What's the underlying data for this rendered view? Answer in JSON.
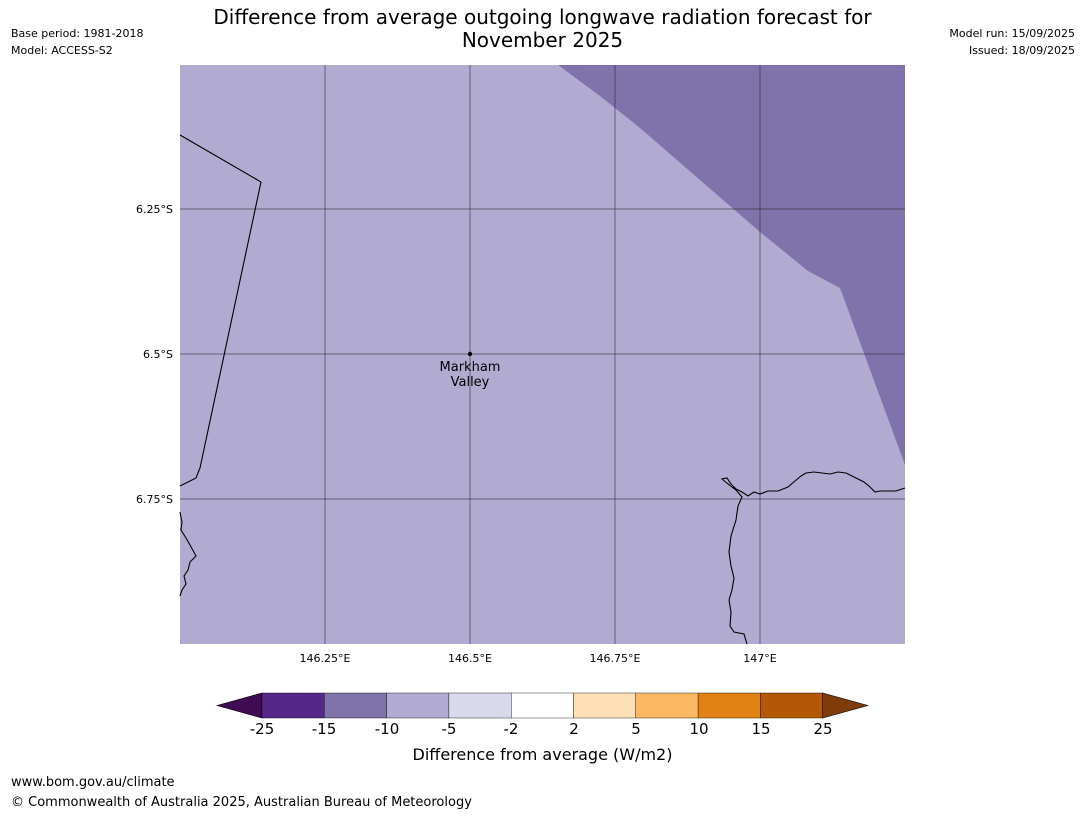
{
  "header": {
    "base_period": "Base period: 1981-2018",
    "model": "Model: ACCESS-S2",
    "title_line1": "Difference from average outgoing longwave radiation forecast for",
    "title_line2": "November 2025",
    "model_run": "Model run: 15/09/2025",
    "issued": "Issued: 18/09/2025"
  },
  "map": {
    "lat_ticks": [
      "6.25°S",
      "6.5°S",
      "6.75°S"
    ],
    "lon_ticks": [
      "146.25°E",
      "146.5°E",
      "146.75°E",
      "147°E"
    ],
    "location": {
      "name_line1": "Markham",
      "name_line2": "Valley"
    },
    "colors": {
      "band_neg10_neg5": "#b1abd2",
      "band_neg15_neg10": "#8073ac"
    }
  },
  "colorbar": {
    "label": "Difference from average (W/m2)",
    "ticks": [
      "-25",
      "-15",
      "-10",
      "-5",
      "-2",
      "2",
      "5",
      "10",
      "15",
      "25"
    ],
    "colors": [
      "#3f0b53",
      "#542788",
      "#8073ac",
      "#b1abd2",
      "#d8daeb",
      "#ffffff",
      "#fee0b6",
      "#fdb863",
      "#e08214",
      "#b35806",
      "#7f3b08"
    ]
  },
  "footer": {
    "url": "www.bom.gov.au/climate",
    "copyright": "© Commonwealth of Australia 2025, Australian Bureau of Meteorology"
  }
}
